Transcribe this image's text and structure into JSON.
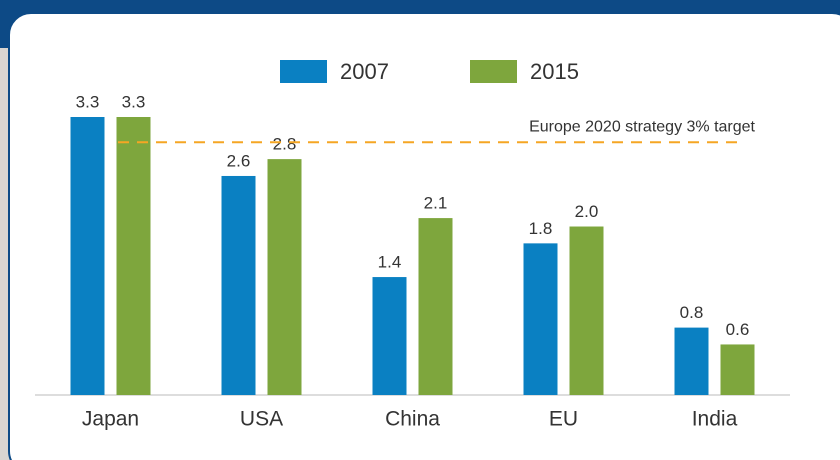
{
  "chart_data": {
    "type": "bar",
    "categories": [
      "Japan",
      "USA",
      "China",
      "EU",
      "India"
    ],
    "series": [
      {
        "name": "2007",
        "color": "#0a80c2",
        "values": [
          3.3,
          2.6,
          1.4,
          1.8,
          0.8
        ]
      },
      {
        "name": "2015",
        "color": "#7ea63d",
        "values": [
          3.3,
          2.8,
          2.1,
          2.0,
          0.6
        ],
        "value_labels": [
          "3.3",
          "2.8",
          "2.1",
          "2.0",
          "0.6"
        ]
      }
    ],
    "ylim": [
      0,
      3.3
    ],
    "annotations": [
      {
        "text": "Europe 2020 strategy 3% target",
        "y": 3,
        "color": "#f5a623"
      }
    ]
  }
}
